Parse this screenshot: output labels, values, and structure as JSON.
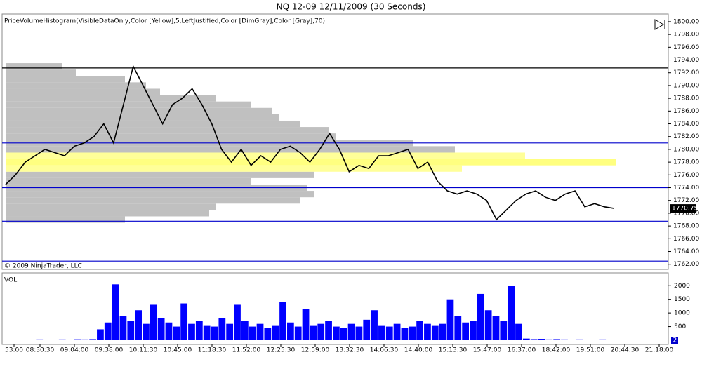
{
  "chart_data": {
    "type": "price-volume",
    "title": "NQ 12-09  12/11/2009 (30 Seconds)",
    "indicator_label": "PriceVolumeHistogram(VisibleDataOnly,Color [Yellow],5,LeftJustified,Color [DimGray],Color [Gray],70)",
    "copyright": "© 2009 NinjaTrader, LLC",
    "volume_label": "VOL",
    "x_labels": [
      "53:00",
      "08:30:30",
      "09:04:00",
      "09:38:00",
      "10:11:30",
      "10:45:00",
      "11:18:30",
      "11:52:00",
      "12:25:30",
      "12:59:00",
      "13:32:30",
      "14:06:30",
      "14:40:00",
      "15:13:30",
      "15:47:00",
      "16:37:00",
      "18:42:00",
      "19:51:00",
      "20:44:30",
      "21:18:00"
    ],
    "ylim": [
      1761.2,
      1801.2
    ],
    "yticks": [
      {
        "value": 1762,
        "label": "1762.00"
      },
      {
        "value": 1764,
        "label": "1764.00"
      },
      {
        "value": 1766,
        "label": "1766.00"
      },
      {
        "value": 1768,
        "label": "1768.00"
      },
      {
        "value": 1770,
        "label": "1770.00"
      },
      {
        "value": 1772,
        "label": "1772.00"
      },
      {
        "value": 1774,
        "label": "1774.00"
      },
      {
        "value": 1776,
        "label": "1776.00"
      },
      {
        "value": 1778,
        "label": "1778.00"
      },
      {
        "value": 1780,
        "label": "1780.00"
      },
      {
        "value": 1782,
        "label": "1782.00"
      },
      {
        "value": 1784,
        "label": "1784.00"
      },
      {
        "value": 1786,
        "label": "1786.00"
      },
      {
        "value": 1788,
        "label": "1788.00"
      },
      {
        "value": 1790,
        "label": "1790.00"
      },
      {
        "value": 1792,
        "label": "1792.00"
      },
      {
        "value": 1794,
        "label": "1794.00"
      },
      {
        "value": 1796,
        "label": "1796.00"
      },
      {
        "value": 1798,
        "label": "1798.00"
      },
      {
        "value": 1800,
        "label": "1800.00"
      }
    ],
    "series": [
      {
        "name": "NQ 12-09",
        "color": "#000000",
        "values": [
          1774.5,
          1776,
          1778,
          1779,
          1780,
          1779.5,
          1779,
          1780.5,
          1781,
          1782,
          1784,
          1781,
          1787,
          1793,
          1790,
          1787,
          1784,
          1787,
          1788,
          1789.5,
          1787,
          1784,
          1780,
          1778,
          1780,
          1777.5,
          1779,
          1778,
          1780,
          1780.5,
          1779.5,
          1778,
          1780,
          1782.5,
          1780,
          1776.5,
          1777.5,
          1777,
          1779,
          1779,
          1779.5,
          1780,
          1777,
          1778,
          1775,
          1773.5,
          1773,
          1773.5,
          1773,
          1772,
          1769,
          1770.5,
          1772,
          1773,
          1773.5,
          1772.5,
          1772,
          1773,
          1773.5,
          1771,
          1771.5,
          1771,
          1770.75
        ]
      }
    ],
    "levels": [
      {
        "value": 1792.75,
        "color": "#000000"
      },
      {
        "value": 1781,
        "color": "#0000cc"
      },
      {
        "value": 1774,
        "color": "#0000cc"
      },
      {
        "value": 1768.75,
        "color": "#0000cc"
      },
      {
        "value": 1762.5,
        "color": "#0000cc"
      }
    ],
    "price_histogram": {
      "prices": [
        1769,
        1770,
        1771,
        1772,
        1773,
        1774,
        1775,
        1776,
        1777,
        1778,
        1779,
        1780,
        1781,
        1782,
        1783,
        1784,
        1785,
        1786,
        1787,
        1788,
        1789,
        1790,
        1791,
        1792,
        1793
      ],
      "volumes": [
        170,
        290,
        300,
        420,
        440,
        430,
        350,
        440,
        650,
        870,
        740,
        640,
        580,
        470,
        460,
        420,
        390,
        380,
        350,
        300,
        220,
        200,
        170,
        100,
        80
      ],
      "colors": [
        "#c0c0c0",
        "#c0c0c0",
        "#c0c0c0",
        "#c0c0c0",
        "#c0c0c0",
        "#c0c0c0",
        "#c0c0c0",
        "#c0c0c0",
        "#ffff99",
        "#ffff80",
        "#ffff99",
        "#c0c0c0",
        "#c0c0c0",
        "#c0c0c0",
        "#c0c0c0",
        "#c0c0c0",
        "#c0c0c0",
        "#c0c0c0",
        "#c0c0c0",
        "#c0c0c0",
        "#c0c0c0",
        "#c0c0c0",
        "#c0c0c0",
        "#c0c0c0",
        "#c0c0c0"
      ]
    },
    "volume": {
      "color": "#0000ff",
      "ylim": [
        0,
        2470
      ],
      "yticks": [
        500,
        1000,
        1500,
        2000
      ],
      "values": [
        20,
        15,
        25,
        20,
        30,
        25,
        20,
        30,
        25,
        35,
        30,
        40,
        400,
        650,
        2050,
        900,
        700,
        1100,
        600,
        1300,
        800,
        650,
        500,
        1350,
        600,
        700,
        550,
        500,
        800,
        600,
        1300,
        700,
        500,
        600,
        450,
        550,
        1400,
        650,
        500,
        1150,
        550,
        600,
        700,
        500,
        450,
        600,
        500,
        750,
        1100,
        550,
        500,
        600,
        450,
        500,
        700,
        600,
        550,
        600,
        1500,
        900,
        650,
        700,
        1700,
        1100,
        900,
        700,
        2000,
        600,
        60,
        40,
        50,
        30,
        40,
        30,
        25,
        30,
        20,
        25,
        30,
        2
      ]
    }
  }
}
